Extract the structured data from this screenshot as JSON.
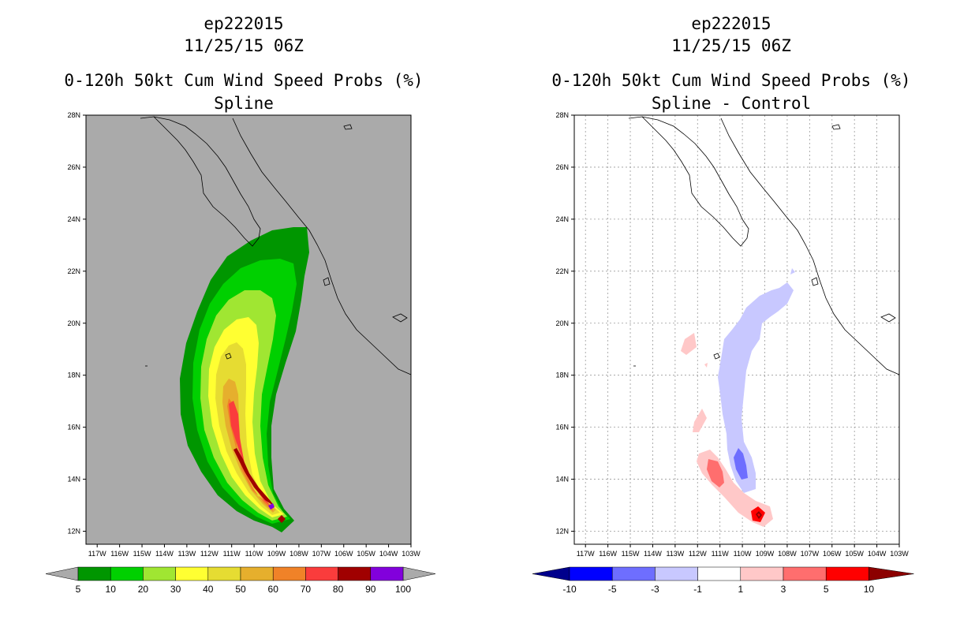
{
  "chart_data": [
    {
      "type": "contour",
      "storm_id": "ep222015",
      "datetime": "11/25/15 06Z",
      "title": "0-120h 50kt Cum Wind Speed Probs (%)",
      "subtitle": "Spline",
      "lat_ticks": [
        "28N",
        "26N",
        "24N",
        "22N",
        "20N",
        "18N",
        "16N",
        "14N",
        "12N"
      ],
      "lon_ticks": [
        "117W",
        "116W",
        "115W",
        "114W",
        "113W",
        "112W",
        "111W",
        "110W",
        "109W",
        "108W",
        "107W",
        "106W",
        "105W",
        "104W",
        "103W"
      ],
      "lat_range": [
        11.5,
        28
      ],
      "lon_range": [
        -117.5,
        -103
      ],
      "background_color": "#aaaaaa",
      "grid": false,
      "colorbar": {
        "labels": [
          "5",
          "10",
          "20",
          "30",
          "40",
          "50",
          "60",
          "70",
          "80",
          "90",
          "100"
        ],
        "colors": [
          "#009600",
          "#00d000",
          "#a0e632",
          "#ffff32",
          "#e6dc32",
          "#e6af2d",
          "#f08228",
          "#fa3c3c",
          "#a00000",
          "#8200dc"
        ],
        "extend_color": "#aaaaaa"
      },
      "contour_levels": [
        {
          "level": 5,
          "color": "#009600"
        },
        {
          "level": 10,
          "color": "#00d000"
        },
        {
          "level": 20,
          "color": "#a0e632"
        },
        {
          "level": 30,
          "color": "#ffff32"
        },
        {
          "level": 40,
          "color": "#e6dc32"
        },
        {
          "level": 50,
          "color": "#e6af2d"
        },
        {
          "level": 60,
          "color": "#f08228"
        },
        {
          "level": 70,
          "color": "#fa3c3c"
        },
        {
          "level": 80,
          "color": "#a00000"
        },
        {
          "level": 90,
          "color": "#8200dc"
        }
      ]
    },
    {
      "type": "contour",
      "storm_id": "ep222015",
      "datetime": "11/25/15 06Z",
      "title": "0-120h 50kt Cum Wind Speed Probs (%)",
      "subtitle": "Spline - Control",
      "lat_ticks": [
        "28N",
        "26N",
        "24N",
        "22N",
        "20N",
        "18N",
        "16N",
        "14N",
        "12N"
      ],
      "lon_ticks": [
        "117W",
        "116W",
        "115W",
        "114W",
        "113W",
        "112W",
        "111W",
        "110W",
        "109W",
        "108W",
        "107W",
        "106W",
        "105W",
        "104W",
        "103W"
      ],
      "lat_range": [
        11.5,
        28
      ],
      "lon_range": [
        -117.5,
        -103
      ],
      "background_color": "#ffffff",
      "grid": true,
      "colorbar": {
        "labels": [
          "-10",
          "-5",
          "-3",
          "-1",
          "1",
          "3",
          "5",
          "10"
        ],
        "colors": [
          "#0000ff",
          "#6e6eff",
          "#c8c8ff",
          "#ffffff",
          "#ffc8c8",
          "#ff6e6e",
          "#ff0000"
        ],
        "extend_low_color": "#00008c",
        "extend_high_color": "#8c0000"
      }
    }
  ]
}
